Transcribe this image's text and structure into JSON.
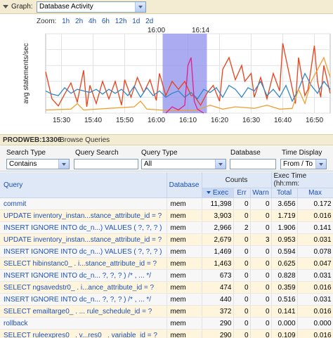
{
  "header": {
    "graph_label": "Graph:",
    "graph_value": "Database Activity",
    "collapse_icon": "triangle-down-icon",
    "dropdown_icon": "chevron-down-icon"
  },
  "zoom": {
    "label": "Zoom:",
    "options": [
      "1h",
      "2h",
      "4h",
      "6h",
      "12h",
      "1d",
      "2d"
    ]
  },
  "chart_data": {
    "type": "line",
    "ylabel": "avg statements/sec",
    "xlabel": "",
    "x_ticks": [
      "15:30",
      "15:40",
      "15:50",
      "16:00",
      "16:10",
      "16:20",
      "16:30",
      "16:40",
      "16:50"
    ],
    "top_markers": [
      "16:00",
      "16:14"
    ],
    "highlight_range": [
      "16:02",
      "16:16"
    ],
    "x_range_minutes": [
      0,
      90
    ],
    "ylim": [
      0,
      100
    ],
    "grid": true,
    "colors": {
      "red": "#e8401a",
      "blue": "#2f86c9",
      "orange": "#f0a030",
      "pink": "#e0208a",
      "highlight": "#8f8fee"
    },
    "series": [
      {
        "color": "red",
        "values": [
          [
            0,
            52
          ],
          [
            2,
            18
          ],
          [
            4,
            9
          ],
          [
            6,
            24
          ],
          [
            8,
            38
          ],
          [
            10,
            14
          ],
          [
            12,
            54
          ],
          [
            13,
            8
          ],
          [
            14,
            35
          ],
          [
            16,
            12
          ],
          [
            18,
            40
          ],
          [
            20,
            18
          ],
          [
            22,
            40
          ],
          [
            24,
            10
          ],
          [
            25,
            42
          ],
          [
            27,
            20
          ],
          [
            29,
            45
          ],
          [
            31,
            26
          ],
          [
            33,
            42
          ],
          [
            35,
            16
          ],
          [
            36,
            50
          ],
          [
            38,
            22
          ],
          [
            40,
            40
          ],
          [
            42,
            30
          ],
          [
            44,
            40
          ],
          [
            46,
            22
          ],
          [
            47,
            22
          ],
          [
            49,
            10
          ],
          [
            51,
            25
          ],
          [
            53,
            35
          ],
          [
            55,
            15
          ],
          [
            56,
            55
          ],
          [
            58,
            70
          ],
          [
            60,
            42
          ],
          [
            62,
            60
          ],
          [
            63,
            40
          ],
          [
            65,
            50
          ],
          [
            66,
            20
          ],
          [
            68,
            45
          ],
          [
            70,
            18
          ],
          [
            72,
            50
          ],
          [
            74,
            28
          ],
          [
            75,
            88
          ],
          [
            77,
            50
          ],
          [
            79,
            12
          ],
          [
            80,
            70
          ],
          [
            82,
            22
          ],
          [
            83,
            30
          ],
          [
            85,
            85
          ],
          [
            86,
            40
          ],
          [
            87,
            20
          ],
          [
            88,
            60
          ],
          [
            90,
            25
          ]
        ]
      },
      {
        "color": "blue",
        "values": [
          [
            0,
            28
          ],
          [
            2,
            24
          ],
          [
            4,
            22
          ],
          [
            6,
            32
          ],
          [
            8,
            25
          ],
          [
            10,
            30
          ],
          [
            12,
            28
          ],
          [
            14,
            26
          ],
          [
            16,
            30
          ],
          [
            18,
            24
          ],
          [
            20,
            30
          ],
          [
            22,
            25
          ],
          [
            24,
            30
          ],
          [
            26,
            22
          ],
          [
            28,
            34
          ],
          [
            30,
            20
          ],
          [
            32,
            32
          ],
          [
            34,
            22
          ],
          [
            36,
            28
          ],
          [
            38,
            20
          ],
          [
            40,
            25
          ],
          [
            42,
            28
          ],
          [
            44,
            20
          ],
          [
            46,
            26
          ],
          [
            48,
            18
          ],
          [
            50,
            30
          ],
          [
            52,
            26
          ],
          [
            54,
            32
          ],
          [
            56,
            20
          ],
          [
            58,
            35
          ],
          [
            60,
            30
          ],
          [
            62,
            20
          ],
          [
            64,
            32
          ],
          [
            66,
            28
          ],
          [
            68,
            40
          ],
          [
            70,
            22
          ],
          [
            72,
            30
          ],
          [
            74,
            20
          ],
          [
            76,
            35
          ],
          [
            78,
            15
          ],
          [
            80,
            30
          ],
          [
            82,
            50
          ],
          [
            84,
            35
          ],
          [
            86,
            25
          ],
          [
            88,
            40
          ],
          [
            90,
            30
          ]
        ]
      },
      {
        "color": "orange",
        "values": [
          [
            0,
            4
          ],
          [
            8,
            5
          ],
          [
            10,
            12
          ],
          [
            12,
            4
          ],
          [
            20,
            6
          ],
          [
            28,
            8
          ],
          [
            30,
            15
          ],
          [
            32,
            5
          ],
          [
            40,
            3
          ],
          [
            48,
            4
          ],
          [
            52,
            10
          ],
          [
            56,
            5
          ],
          [
            60,
            8
          ],
          [
            66,
            6
          ],
          [
            70,
            10
          ],
          [
            74,
            5
          ],
          [
            78,
            6
          ],
          [
            80,
            30
          ],
          [
            82,
            12
          ],
          [
            84,
            40
          ],
          [
            86,
            55
          ],
          [
            88,
            70
          ],
          [
            90,
            45
          ]
        ]
      },
      {
        "color": "pink",
        "values": [
          [
            38,
            0
          ],
          [
            40,
            8
          ],
          [
            42,
            4
          ],
          [
            44,
            10
          ],
          [
            45,
            60
          ],
          [
            46,
            70
          ],
          [
            47,
            15
          ],
          [
            48,
            5
          ],
          [
            50,
            0
          ]
        ]
      }
    ]
  },
  "panel": {
    "host": "PRODWEB:13306",
    "title": "Browse Queries"
  },
  "filters": {
    "search_type_label": "Search Type",
    "search_type_value": "Contains",
    "query_search_label": "Query Search",
    "query_search_value": "",
    "query_type_label": "Query Type",
    "query_type_value": "All",
    "database_label": "Database",
    "database_value": "",
    "time_display_label": "Time Display",
    "time_display_value": "From / To"
  },
  "table": {
    "col_query": "Query",
    "col_database": "Database",
    "grp_counts": "Counts",
    "grp_exec_time": "Exec Time (hh:mm:",
    "col_exec": "Exec",
    "col_err": "Err",
    "col_warn": "Warn",
    "col_total": "Total",
    "col_max": "Max",
    "rows": [
      [
        "commit",
        "mem",
        "11,398",
        "0",
        "0",
        "3.656",
        "0.172"
      ],
      [
        "UPDATE inventory_instan...stance_attribute_id = ?",
        "mem",
        "3,903",
        "0",
        "0",
        "1.719",
        "0.016"
      ],
      [
        "INSERT IGNORE INTO dc_n...) VALUES ( ?, ?, ? )",
        "mem",
        "2,966",
        "2",
        "0",
        "1.906",
        "0.141"
      ],
      [
        "UPDATE inventory_instan...stance_attribute_id = ?",
        "mem",
        "2,679",
        "0",
        "3",
        "0.953",
        "0.031"
      ],
      [
        "INSERT IGNORE INTO dc_n...) VALUES ( ?, ?, ? )",
        "mem",
        "1,469",
        "0",
        "0",
        "0.594",
        "0.078"
      ],
      [
        "SELECT hibinstanc0_ . i...stance_attribute_id = ?",
        "mem",
        "1,463",
        "0",
        "0",
        "0.625",
        "0.047"
      ],
      [
        "INSERT IGNORE INTO dc_n... ?, ?, ? ) /* , ... */",
        "mem",
        "673",
        "0",
        "0",
        "0.828",
        "0.031"
      ],
      [
        "SELECT ngsavedstr0_ . i...ance_attribute_id = ?",
        "mem",
        "474",
        "0",
        "0",
        "0.359",
        "0.016"
      ],
      [
        "INSERT IGNORE INTO dc_n... ?, ?, ? ) /* , ... */",
        "mem",
        "440",
        "0",
        "0",
        "0.516",
        "0.031"
      ],
      [
        "SELECT emailtarge0_ . ... rule_schedule_id = ?",
        "mem",
        "372",
        "0",
        "0",
        "0.141",
        "0.016"
      ],
      [
        "rollback",
        "mem",
        "290",
        "0",
        "0",
        "0.000",
        "0.000"
      ],
      [
        "SELECT ruleexpres0_ . v...res0_ . variable_id = ?",
        "mem",
        "290",
        "0",
        "0",
        "0.109",
        "0.016"
      ]
    ]
  }
}
